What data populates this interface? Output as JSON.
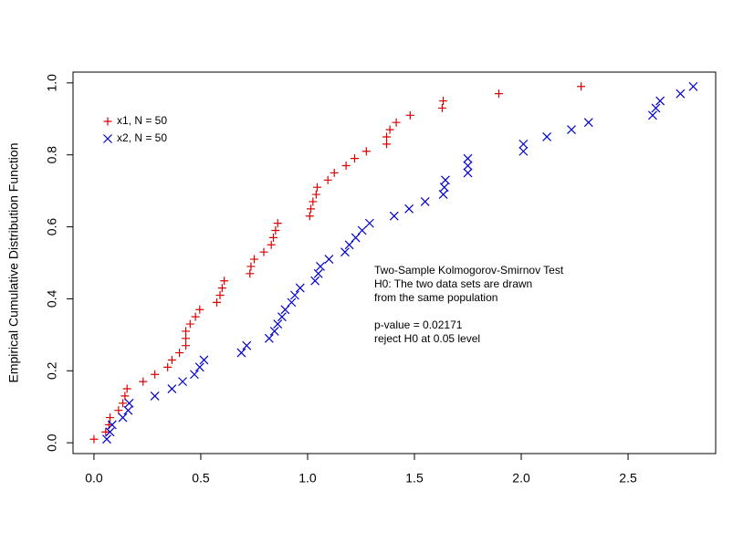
{
  "chart_data": {
    "type": "scatter",
    "ylabel": "Empirical Cumulative Distribution Function",
    "xlim": [
      -0.098,
      2.91
    ],
    "ylim": [
      -0.03,
      1.03
    ],
    "xticks": [
      {
        "value": 0,
        "label": "0.0"
      },
      {
        "value": 0.5,
        "label": "0.5"
      },
      {
        "value": 1,
        "label": "1.0"
      },
      {
        "value": 1.5,
        "label": "1.5"
      },
      {
        "value": 2,
        "label": "2.0"
      },
      {
        "value": 2.5,
        "label": "2.5"
      }
    ],
    "yticks": [
      {
        "value": 0,
        "label": "0.0"
      },
      {
        "value": 0.2,
        "label": "0.2"
      },
      {
        "value": 0.4,
        "label": "0.4"
      },
      {
        "value": 0.6,
        "label": "0.6"
      },
      {
        "value": 0.8,
        "label": "0.8"
      },
      {
        "value": 1,
        "label": "1.0"
      }
    ],
    "legend": "top-left",
    "annotations": [
      [
        "Two-Sample Kolmogorov-Smirnov Test",
        "H0: The two data sets are drawn",
        "from the same population"
      ],
      [
        "p-value = 0.02171",
        "reject H0 at 0.05 level"
      ]
    ],
    "series": [
      {
        "name": "x1, N = 50",
        "color": "#dd0000",
        "marker": "+",
        "x": [
          0.0,
          0.055,
          0.07,
          0.075,
          0.115,
          0.135,
          0.145,
          0.155,
          0.23,
          0.285,
          0.345,
          0.365,
          0.4,
          0.43,
          0.43,
          0.43,
          0.45,
          0.475,
          0.495,
          0.575,
          0.59,
          0.6,
          0.61,
          0.73,
          0.735,
          0.75,
          0.795,
          0.83,
          0.84,
          0.85,
          0.86,
          1.01,
          1.015,
          1.025,
          1.04,
          1.045,
          1.095,
          1.125,
          1.18,
          1.22,
          1.275,
          1.37,
          1.37,
          1.385,
          1.415,
          1.48,
          1.63,
          1.635,
          1.895,
          2.28
        ],
        "values": [
          0.01,
          0.03,
          0.05,
          0.07,
          0.09,
          0.11,
          0.13,
          0.15,
          0.17,
          0.19,
          0.21,
          0.23,
          0.25,
          0.27,
          0.29,
          0.31,
          0.33,
          0.35,
          0.37,
          0.39,
          0.41,
          0.43,
          0.45,
          0.47,
          0.49,
          0.51,
          0.53,
          0.55,
          0.57,
          0.59,
          0.61,
          0.63,
          0.65,
          0.67,
          0.69,
          0.71,
          0.73,
          0.75,
          0.77,
          0.79,
          0.81,
          0.83,
          0.85,
          0.87,
          0.89,
          0.91,
          0.93,
          0.95,
          0.97,
          0.99
        ]
      },
      {
        "name": "x2, N = 50",
        "color": "#0000cc",
        "marker": "x",
        "x": [
          0.06,
          0.075,
          0.085,
          0.135,
          0.16,
          0.165,
          0.285,
          0.365,
          0.415,
          0.47,
          0.495,
          0.515,
          0.69,
          0.715,
          0.82,
          0.845,
          0.86,
          0.88,
          0.895,
          0.925,
          0.94,
          0.965,
          1.035,
          1.05,
          1.06,
          1.1,
          1.175,
          1.195,
          1.225,
          1.255,
          1.29,
          1.405,
          1.475,
          1.55,
          1.635,
          1.64,
          1.645,
          1.75,
          1.75,
          1.75,
          2.01,
          2.01,
          2.12,
          2.235,
          2.315,
          2.615,
          2.63,
          2.65,
          2.745,
          2.805
        ],
        "values": [
          0.01,
          0.03,
          0.05,
          0.07,
          0.09,
          0.11,
          0.13,
          0.15,
          0.17,
          0.19,
          0.21,
          0.23,
          0.25,
          0.27,
          0.29,
          0.31,
          0.33,
          0.35,
          0.37,
          0.39,
          0.41,
          0.43,
          0.45,
          0.47,
          0.49,
          0.51,
          0.53,
          0.55,
          0.57,
          0.59,
          0.61,
          0.63,
          0.65,
          0.67,
          0.69,
          0.71,
          0.73,
          0.75,
          0.77,
          0.79,
          0.81,
          0.83,
          0.85,
          0.87,
          0.89,
          0.91,
          0.93,
          0.95,
          0.97,
          0.99
        ]
      }
    ]
  }
}
